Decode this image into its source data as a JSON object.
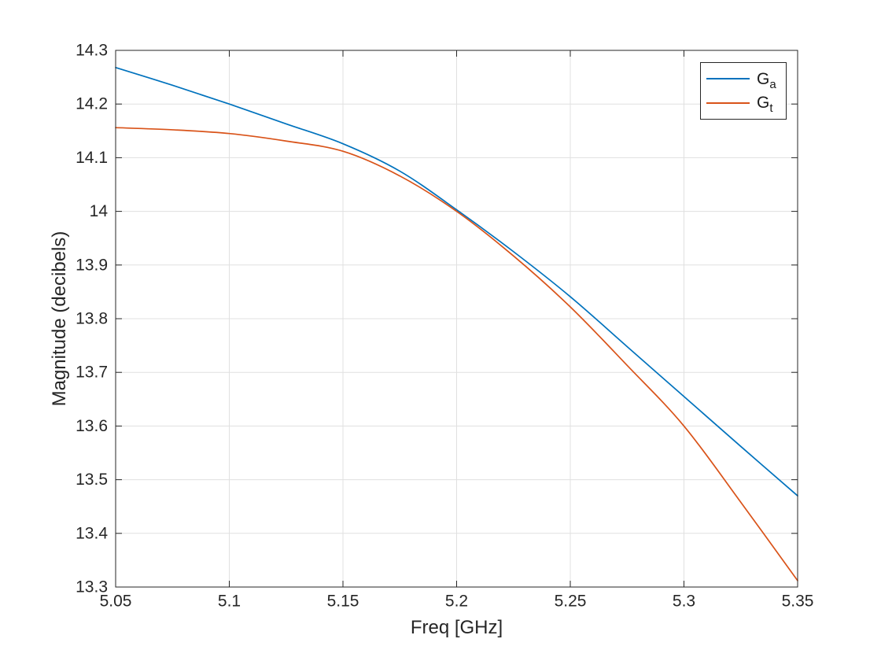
{
  "style": {
    "background": "#ffffff",
    "axis_color": "#262626",
    "grid_color": "#e0e0e0",
    "tick_label_color": "#262626"
  },
  "chart_data": {
    "type": "line",
    "title": "",
    "xlabel": "Freq [GHz]",
    "ylabel": "Magnitude (decibels)",
    "xlim": [
      5.05,
      5.35
    ],
    "ylim": [
      13.3,
      14.3
    ],
    "grid": true,
    "legend_position": "top-right",
    "xticks": [
      5.05,
      5.1,
      5.15,
      5.2,
      5.25,
      5.3,
      5.35
    ],
    "xtick_labels": [
      "5.05",
      "5.1",
      "5.15",
      "5.2",
      "5.25",
      "5.3",
      "5.35"
    ],
    "yticks": [
      13.3,
      13.4,
      13.5,
      13.6,
      13.7,
      13.8,
      13.9,
      14,
      14.1,
      14.2,
      14.3
    ],
    "ytick_labels": [
      "13.3",
      "13.4",
      "13.5",
      "13.6",
      "13.7",
      "13.8",
      "13.9",
      "14",
      "14.1",
      "14.2",
      "14.3"
    ],
    "x": [
      5.05,
      5.075,
      5.1,
      5.125,
      5.15,
      5.175,
      5.2,
      5.225,
      5.25,
      5.275,
      5.3,
      5.325,
      5.35
    ],
    "series": [
      {
        "name": "Ga",
        "label_main": "G",
        "label_sub": "a",
        "color": "#0072BD",
        "values": [
          14.268,
          14.235,
          14.2,
          14.163,
          14.126,
          14.075,
          14.003,
          13.925,
          13.841,
          13.748,
          13.655,
          13.562,
          13.47
        ]
      },
      {
        "name": "Gt",
        "label_main": "G",
        "label_sub": "t",
        "color": "#D95319",
        "values": [
          14.156,
          14.152,
          14.145,
          14.131,
          14.112,
          14.066,
          14.0,
          13.917,
          13.822,
          13.713,
          13.6,
          13.458,
          13.312
        ]
      }
    ]
  }
}
